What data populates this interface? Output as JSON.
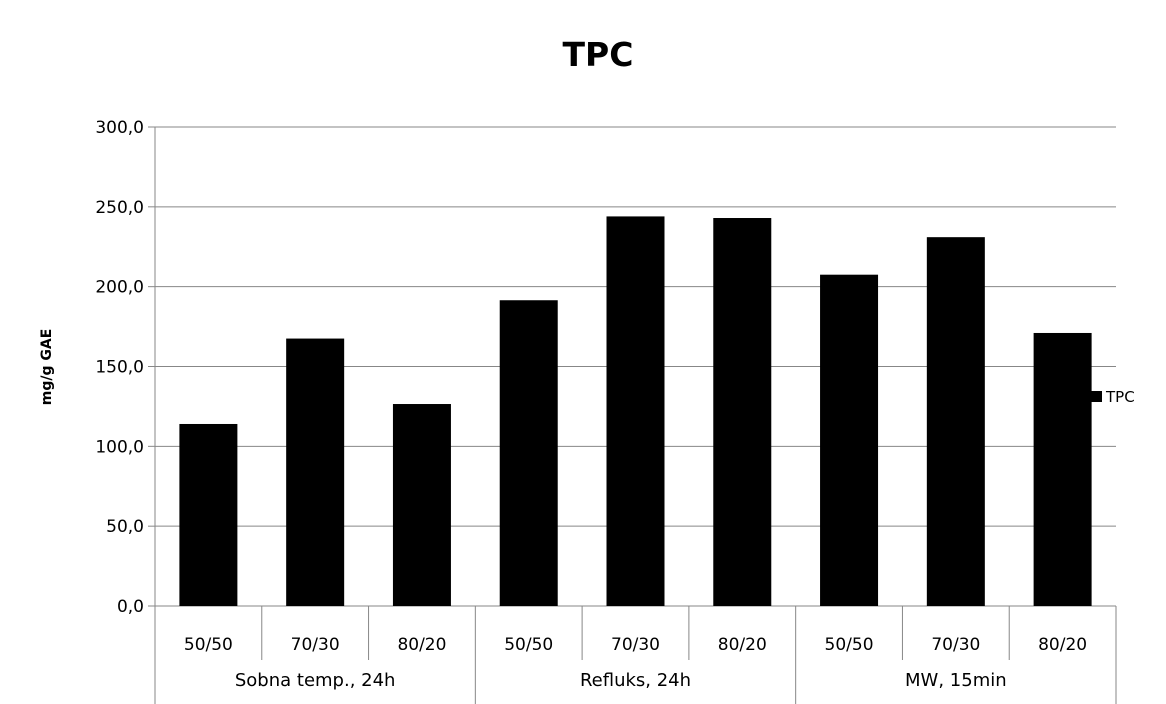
{
  "chart_data": {
    "type": "bar",
    "title": "TPC",
    "ylabel": "mg/g GAE",
    "xlabel": "",
    "ylim": [
      0,
      300
    ],
    "yticks": [
      "0,0",
      "50,0",
      "100,0",
      "150,0",
      "200,0",
      "250,0",
      "300,0"
    ],
    "categories": [
      "50/50",
      "70/30",
      "80/20",
      "50/50",
      "70/30",
      "80/20",
      "50/50",
      "70/30",
      "80/20"
    ],
    "groups": [
      {
        "label": "Sobna temp., 24h",
        "size": 3
      },
      {
        "label": "Refluks, 24h",
        "size": 3
      },
      {
        "label": "MW, 15min",
        "size": 3
      }
    ],
    "series": [
      {
        "name": "TPC",
        "values": [
          114,
          167.5,
          126.5,
          191.5,
          244,
          243,
          207.5,
          231,
          171
        ],
        "color": "#000000"
      }
    ],
    "grid": true,
    "legend": "right"
  }
}
